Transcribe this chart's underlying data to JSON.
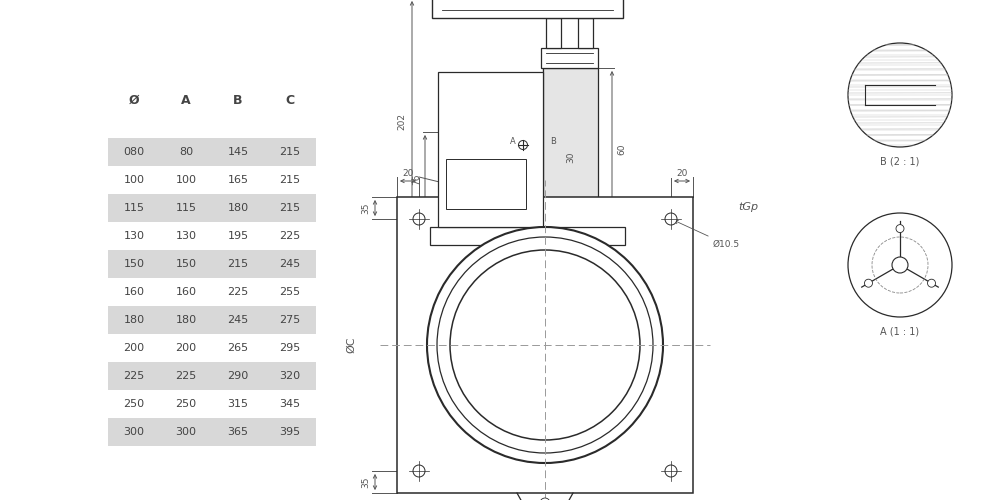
{
  "table_headers": [
    "Ø",
    "A",
    "B",
    "C"
  ],
  "table_rows": [
    [
      "080",
      "80",
      "145",
      "215"
    ],
    [
      "100",
      "100",
      "165",
      "215"
    ],
    [
      "115",
      "115",
      "180",
      "215"
    ],
    [
      "130",
      "130",
      "195",
      "225"
    ],
    [
      "150",
      "150",
      "215",
      "245"
    ],
    [
      "160",
      "160",
      "225",
      "255"
    ],
    [
      "180",
      "180",
      "245",
      "275"
    ],
    [
      "200",
      "200",
      "265",
      "295"
    ],
    [
      "225",
      "225",
      "290",
      "320"
    ],
    [
      "250",
      "250",
      "315",
      "345"
    ],
    [
      "300",
      "300",
      "365",
      "395"
    ]
  ],
  "shaded_rows": [
    0,
    2,
    4,
    6,
    8,
    10
  ],
  "row_bg_shaded": "#d8d8d8",
  "row_bg_normal": "#ffffff",
  "text_color": "#444444",
  "bg_color": "#ffffff",
  "line_color": "#2a2a2a",
  "dim_color": "#555555",
  "font_size_table": 8,
  "font_size_header": 9,
  "font_size_dim": 6.5
}
